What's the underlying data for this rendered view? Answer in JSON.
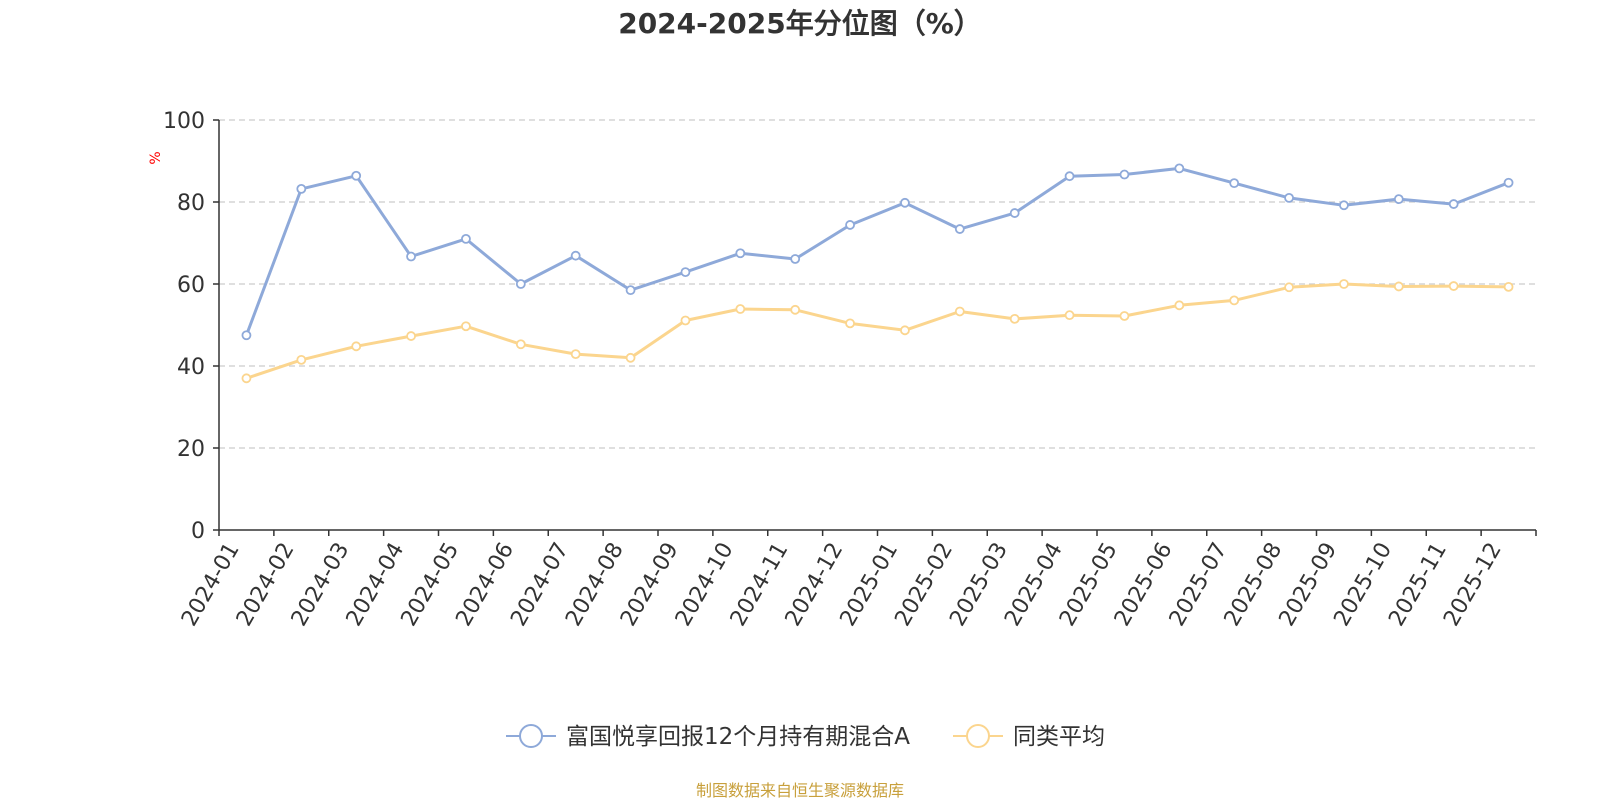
{
  "chart_data": {
    "type": "line",
    "title": "2024-2025年分位图（%）",
    "ylabel": "%",
    "xlabel": "",
    "ylim": [
      0,
      100
    ],
    "yticks": [
      0,
      20,
      40,
      60,
      80,
      100
    ],
    "grid": true,
    "legend_position": "bottom",
    "categories": [
      "2024-01",
      "2024-02",
      "2024-03",
      "2024-04",
      "2024-05",
      "2024-06",
      "2024-07",
      "2024-08",
      "2024-09",
      "2024-10",
      "2024-11",
      "2024-12",
      "2025-01",
      "2025-02",
      "2025-03",
      "2025-04",
      "2025-05",
      "2025-06",
      "2025-07",
      "2025-08",
      "2025-09",
      "2025-10",
      "2025-11",
      "2025-12"
    ],
    "series": [
      {
        "name": "富国悦享回报12个月持有期混合A",
        "color": "#8ea9d9",
        "values": [
          47.5,
          83.2,
          86.4,
          66.7,
          71.0,
          60.0,
          66.9,
          58.5,
          62.9,
          67.5,
          66.1,
          74.4,
          79.8,
          73.4,
          77.3,
          86.3,
          86.7,
          88.2,
          84.6,
          81.0,
          79.2,
          80.7,
          79.5,
          84.7
        ]
      },
      {
        "name": "同类平均",
        "color": "#fbd58e",
        "values": [
          37.0,
          41.5,
          44.8,
          47.3,
          49.7,
          45.3,
          42.9,
          42.0,
          51.1,
          53.9,
          53.7,
          50.4,
          48.7,
          53.3,
          51.5,
          52.4,
          52.2,
          54.8,
          56.0,
          59.2,
          60.0,
          59.4,
          59.5,
          59.3
        ]
      }
    ],
    "source": "制图数据来自恒生聚源数据库"
  },
  "colors": {
    "title": "#333333",
    "axis": "#333333",
    "grid": "#cccccc",
    "ylabel": "#ff0000",
    "source": "#c8a03c"
  }
}
